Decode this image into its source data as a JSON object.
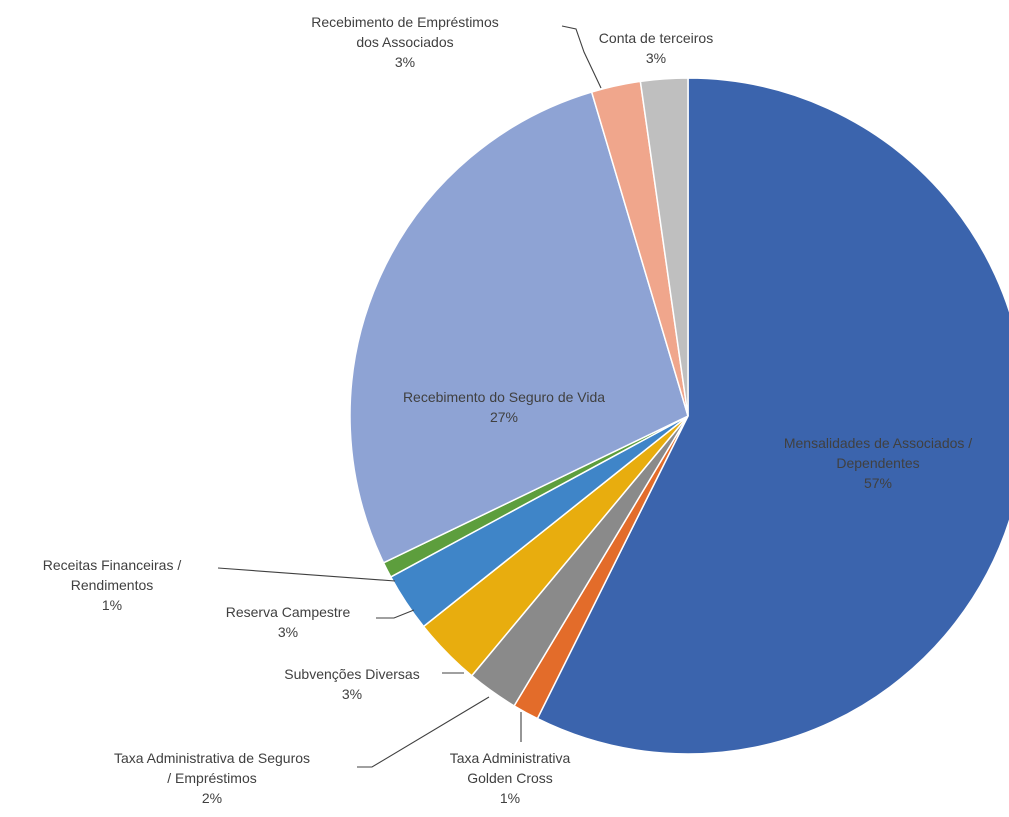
{
  "chart_data": {
    "type": "pie",
    "title": "",
    "slices": [
      {
        "label_lines": [
          "Mensalidades de Associados /",
          "Dependentes"
        ],
        "value": 57,
        "display": "57%",
        "color": "#3b64ad"
      },
      {
        "label_lines": [
          "Taxa Administrativa",
          "Golden Cross"
        ],
        "value": 1,
        "display": "1%",
        "color": "#e36c2a"
      },
      {
        "label_lines": [
          "Taxa Administrativa  de Seguros",
          "/ Empréstimos"
        ],
        "value": 2,
        "display": "2%",
        "color": "#8a8a8a"
      },
      {
        "label_lines": [
          "Subvenções Diversas"
        ],
        "value": 3,
        "display": "3%",
        "color": "#e8ad0e"
      },
      {
        "label_lines": [
          "Reserva Campestre"
        ],
        "value": 3,
        "display": "3%",
        "color": "#3f85c8"
      },
      {
        "label_lines": [
          "Receitas Financeiras /",
          "Rendimentos"
        ],
        "value": 1,
        "display": "1%",
        "color": "#5d9e3d"
      },
      {
        "label_lines": [
          "Recebimento do Seguro de Vida"
        ],
        "value": 27,
        "display": "27%",
        "color": "#8ea3d4"
      },
      {
        "label_lines": [
          "Recebimento de Empréstimos",
          "dos Associados"
        ],
        "value": 3,
        "display": "3%",
        "color": "#f0a68c"
      },
      {
        "label_lines": [
          "Conta de terceiros"
        ],
        "value": 3,
        "display": "3%",
        "color": "#bfbfbf"
      }
    ]
  }
}
